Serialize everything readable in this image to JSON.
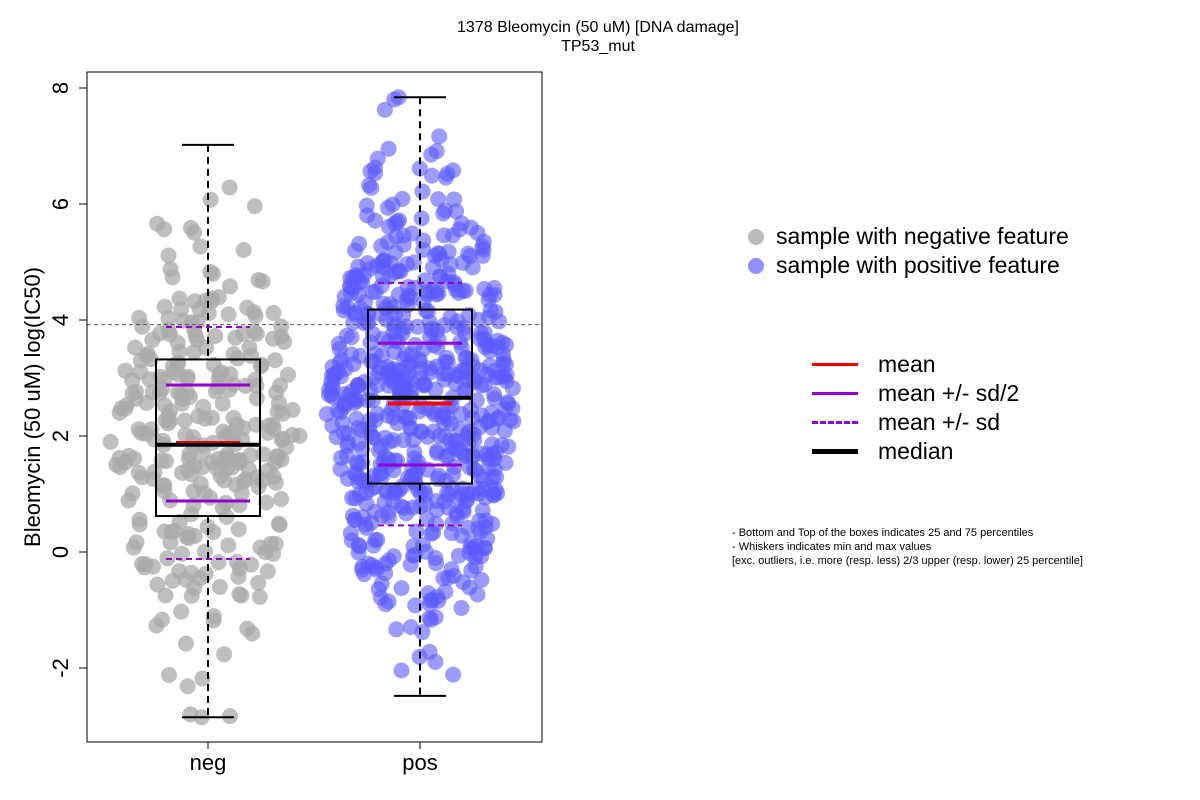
{
  "chart_data": {
    "type": "box",
    "title": "1378 Bleomycin (50 uM) [DNA damage]",
    "subtitle": "TP53_mut",
    "xlabel": "",
    "ylabel": "Bleomycin (50 uM) log(IC50)",
    "categories": [
      "neg",
      "pos"
    ],
    "ylim": [
      -3.3,
      8.3
    ],
    "yticks": [
      -2,
      0,
      2,
      4,
      6,
      8
    ],
    "ytick_labels": [
      "-2",
      "0",
      "2",
      "4",
      "6",
      "8"
    ],
    "reference_line": 3.92,
    "series": [
      {
        "category": "neg",
        "color": "#aaaaaa",
        "n_points": 300,
        "min": -2.85,
        "q1": 0.62,
        "median": 1.85,
        "q3": 3.32,
        "max": 7.02,
        "mean": 1.88,
        "mean_plus_half_sd": 2.88,
        "mean_minus_half_sd": 0.88,
        "mean_plus_sd": 3.88,
        "mean_minus_sd": -0.12
      },
      {
        "category": "pos",
        "color": "#6666ff",
        "n_points": 650,
        "min": -2.48,
        "q1": 1.18,
        "median": 2.66,
        "q3": 4.18,
        "max": 7.84,
        "mean": 2.56,
        "mean_plus_half_sd": 3.6,
        "mean_minus_half_sd": 1.5,
        "mean_plus_sd": 4.64,
        "mean_minus_sd": 0.46
      }
    ]
  },
  "point_legend": [
    {
      "label": "sample with negative feature",
      "color": "#aaaaaa"
    },
    {
      "label": "sample with positive feature",
      "color": "#8888ff"
    }
  ],
  "line_legend": [
    {
      "label": "mean",
      "color": "#ff0000",
      "style": "solid"
    },
    {
      "label": "mean +/- sd/2",
      "color": "#9400d3",
      "style": "solid"
    },
    {
      "label": "mean +/- sd",
      "color": "#9400d3",
      "style": "dashed"
    },
    {
      "label": "median",
      "color": "#000000",
      "style": "solid-thick"
    }
  ],
  "notes": [
    "- Bottom and Top of the boxes indicates 25 and 75 percentiles",
    "- Whiskers indicates min and max values",
    "[exc. outliers, i.e. more (resp. less) 2/3 upper (resp. lower) 25 percentile]"
  ]
}
